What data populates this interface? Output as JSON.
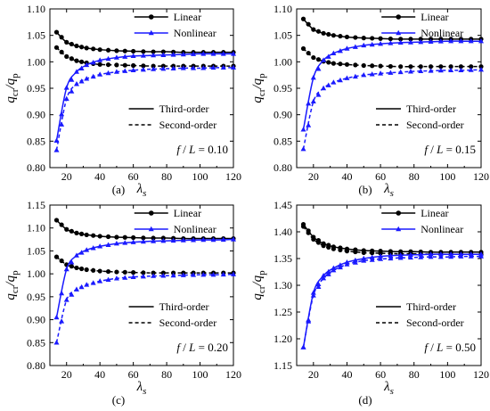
{
  "chart_data": [
    {
      "id": "a",
      "type": "line",
      "panel_label": "(a)",
      "xlabel": "λs",
      "ylabel": "qcr/qp",
      "xlim": [
        10,
        120
      ],
      "ylim": [
        0.8,
        1.1
      ],
      "xticks": [
        20,
        40,
        60,
        80,
        100,
        120
      ],
      "yticks": [
        0.8,
        0.85,
        0.9,
        0.95,
        1.0,
        1.05,
        1.1
      ],
      "tick_labels_y": [
        "0.80",
        "0.85",
        "0.90",
        "0.95",
        "1.00",
        "1.05",
        "1.10"
      ],
      "annotation": "f / L = 0.10",
      "x": [
        14,
        20,
        26,
        32,
        40,
        50,
        60,
        70,
        80,
        90,
        100,
        110,
        120
      ],
      "series": [
        {
          "name": "Linear",
          "order": "Third-order",
          "color": "#000000",
          "marker": "circle",
          "values": [
            1.056,
            1.037,
            1.03,
            1.026,
            1.023,
            1.021,
            1.02,
            1.019,
            1.019,
            1.018,
            1.018,
            1.018,
            1.018
          ]
        },
        {
          "name": "Linear",
          "order": "Second-order",
          "color": "#000000",
          "marker": "circle",
          "values": [
            1.027,
            1.01,
            1.002,
            0.998,
            0.995,
            0.994,
            0.993,
            0.992,
            0.992,
            0.992,
            0.992,
            0.992,
            0.992
          ]
        },
        {
          "name": "Nonlinear",
          "order": "Third-order",
          "color": "#1a1aff",
          "marker": "triangle",
          "values": [
            0.851,
            0.951,
            0.981,
            0.994,
            1.003,
            1.008,
            1.011,
            1.012,
            1.013,
            1.014,
            1.015,
            1.015,
            1.015
          ]
        },
        {
          "name": "Nonlinear",
          "order": "Second-order",
          "color": "#1a1aff",
          "marker": "triangle",
          "values": [
            0.833,
            0.93,
            0.958,
            0.968,
            0.976,
            0.981,
            0.984,
            0.986,
            0.987,
            0.988,
            0.988,
            0.989,
            0.989
          ]
        }
      ]
    },
    {
      "id": "b",
      "type": "line",
      "panel_label": "(b)",
      "xlabel": "λs",
      "ylabel": "qcr/qp",
      "xlim": [
        10,
        120
      ],
      "ylim": [
        0.8,
        1.1
      ],
      "xticks": [
        20,
        40,
        60,
        80,
        100,
        120
      ],
      "yticks": [
        0.8,
        0.85,
        0.9,
        0.95,
        1.0,
        1.05,
        1.1
      ],
      "tick_labels_y": [
        "0.80",
        "0.85",
        "0.90",
        "0.95",
        "1.00",
        "1.05",
        "1.10"
      ],
      "annotation": "f / L = 0.15",
      "x": [
        14,
        20,
        26,
        32,
        40,
        50,
        60,
        70,
        80,
        90,
        100,
        110,
        120
      ],
      "series": [
        {
          "name": "Linear",
          "order": "Third-order",
          "color": "#000000",
          "marker": "circle",
          "values": [
            1.081,
            1.061,
            1.054,
            1.05,
            1.047,
            1.045,
            1.044,
            1.043,
            1.043,
            1.043,
            1.043,
            1.043,
            1.043
          ]
        },
        {
          "name": "Linear",
          "order": "Second-order",
          "color": "#000000",
          "marker": "circle",
          "values": [
            1.025,
            1.008,
            1.001,
            0.997,
            0.995,
            0.993,
            0.992,
            0.991,
            0.991,
            0.991,
            0.991,
            0.991,
            0.991
          ]
        },
        {
          "name": "Nonlinear",
          "order": "Third-order",
          "color": "#1a1aff",
          "marker": "triangle",
          "values": [
            0.872,
            0.97,
            1.003,
            1.016,
            1.025,
            1.031,
            1.034,
            1.036,
            1.037,
            1.038,
            1.039,
            1.039,
            1.039
          ]
        },
        {
          "name": "Nonlinear",
          "order": "Second-order",
          "color": "#1a1aff",
          "marker": "triangle",
          "values": [
            0.835,
            0.925,
            0.95,
            0.961,
            0.969,
            0.975,
            0.978,
            0.98,
            0.982,
            0.983,
            0.984,
            0.984,
            0.985
          ]
        }
      ]
    },
    {
      "id": "c",
      "type": "line",
      "panel_label": "(c)",
      "xlabel": "λs",
      "ylabel": "qcr/qp",
      "xlim": [
        10,
        120
      ],
      "ylim": [
        0.8,
        1.15
      ],
      "xticks": [
        20,
        40,
        60,
        80,
        100,
        120
      ],
      "yticks": [
        0.8,
        0.85,
        0.9,
        0.95,
        1.0,
        1.05,
        1.1,
        1.15
      ],
      "tick_labels_y": [
        "0.80",
        "0.85",
        "0.90",
        "0.95",
        "1.00",
        "1.05",
        "1.10",
        "1.15"
      ],
      "annotation": "f / L = 0.20",
      "x": [
        14,
        20,
        26,
        32,
        40,
        50,
        60,
        70,
        80,
        90,
        100,
        110,
        120
      ],
      "series": [
        {
          "name": "Linear",
          "order": "Third-order",
          "color": "#000000",
          "marker": "circle",
          "values": [
            1.117,
            1.097,
            1.089,
            1.085,
            1.082,
            1.08,
            1.079,
            1.078,
            1.078,
            1.077,
            1.077,
            1.077,
            1.077
          ]
        },
        {
          "name": "Linear",
          "order": "Second-order",
          "color": "#000000",
          "marker": "circle",
          "values": [
            1.037,
            1.02,
            1.013,
            1.009,
            1.006,
            1.004,
            1.003,
            1.002,
            1.002,
            1.002,
            1.002,
            1.002,
            1.002
          ]
        },
        {
          "name": "Nonlinear",
          "order": "Third-order",
          "color": "#1a1aff",
          "marker": "triangle",
          "values": [
            0.905,
            1.01,
            1.04,
            1.052,
            1.06,
            1.066,
            1.069,
            1.071,
            1.072,
            1.073,
            1.074,
            1.074,
            1.075
          ]
        },
        {
          "name": "Nonlinear",
          "order": "Second-order",
          "color": "#1a1aff",
          "marker": "triangle",
          "values": [
            0.85,
            0.943,
            0.966,
            0.976,
            0.984,
            0.99,
            0.993,
            0.995,
            0.996,
            0.997,
            0.998,
            0.998,
            0.999
          ]
        }
      ]
    },
    {
      "id": "d",
      "type": "line",
      "panel_label": "(d)",
      "xlabel": "λs",
      "ylabel": "qcr/qp",
      "xlim": [
        10,
        120
      ],
      "ylim": [
        1.15,
        1.45
      ],
      "xticks": [
        20,
        40,
        60,
        80,
        100,
        120
      ],
      "yticks": [
        1.15,
        1.2,
        1.25,
        1.3,
        1.35,
        1.4,
        1.45
      ],
      "tick_labels_y": [
        "1.15",
        "1.20",
        "1.25",
        "1.30",
        "1.35",
        "1.40",
        "1.45"
      ],
      "annotation": "f / L = 0.50",
      "x": [
        14,
        20,
        26,
        32,
        40,
        50,
        60,
        70,
        80,
        90,
        100,
        110,
        120
      ],
      "series": [
        {
          "name": "Linear",
          "order": "Third-order",
          "color": "#000000",
          "marker": "circle",
          "values": [
            1.414,
            1.39,
            1.378,
            1.372,
            1.368,
            1.365,
            1.364,
            1.363,
            1.363,
            1.362,
            1.362,
            1.362,
            1.362
          ]
        },
        {
          "name": "Linear",
          "order": "Second-order",
          "color": "#000000",
          "marker": "circle",
          "values": [
            1.41,
            1.386,
            1.374,
            1.368,
            1.364,
            1.361,
            1.36,
            1.359,
            1.359,
            1.358,
            1.358,
            1.358,
            1.358
          ]
        },
        {
          "name": "Nonlinear",
          "order": "Third-order",
          "color": "#1a1aff",
          "marker": "triangle",
          "values": [
            1.184,
            1.286,
            1.318,
            1.332,
            1.343,
            1.35,
            1.354,
            1.356,
            1.357,
            1.358,
            1.358,
            1.358,
            1.358
          ]
        },
        {
          "name": "Nonlinear",
          "order": "Second-order",
          "color": "#1a1aff",
          "marker": "triangle",
          "values": [
            1.184,
            1.281,
            1.313,
            1.328,
            1.339,
            1.346,
            1.349,
            1.351,
            1.352,
            1.353,
            1.353,
            1.354,
            1.354
          ]
        }
      ]
    }
  ],
  "legend": {
    "linear": "Linear",
    "nonlinear": "Nonlinear",
    "third_order": "Third-order",
    "second_order": "Second-order"
  }
}
